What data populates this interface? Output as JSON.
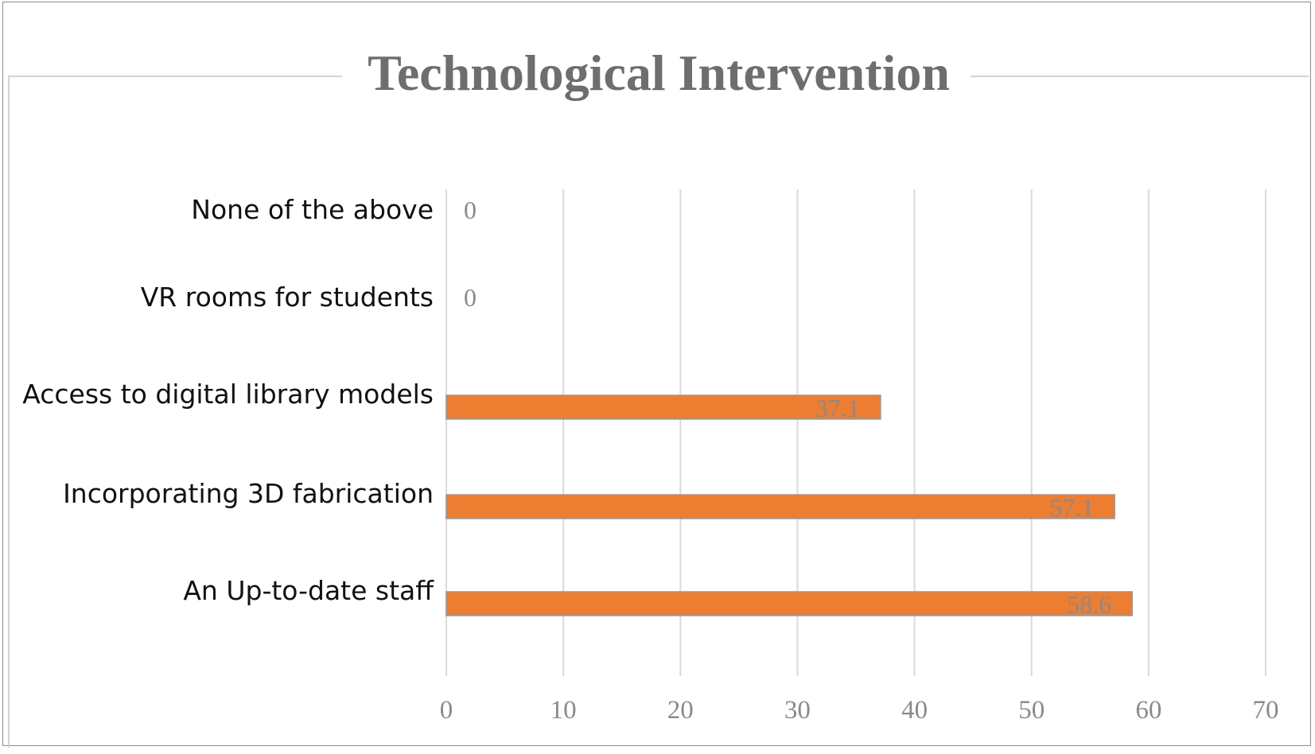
{
  "chart_data": {
    "type": "bar",
    "orientation": "horizontal",
    "title": "Technological Intervention",
    "categories": [
      "None of the above",
      "VR rooms for students",
      "Access to digital library models",
      "Incorporating 3D fabrication",
      "An Up-to-date staff"
    ],
    "values": [
      0,
      0,
      37.1,
      57.1,
      58.6
    ],
    "data_labels": [
      "0",
      "0",
      "37.1",
      "57.1",
      "58.6"
    ],
    "xlim": [
      0,
      70
    ],
    "x_ticks": [
      0,
      10,
      20,
      30,
      40,
      50,
      60,
      70
    ],
    "xlabel": "",
    "ylabel": "",
    "grid": "vertical",
    "legend": "none",
    "bar_color": "#ed7d31"
  }
}
